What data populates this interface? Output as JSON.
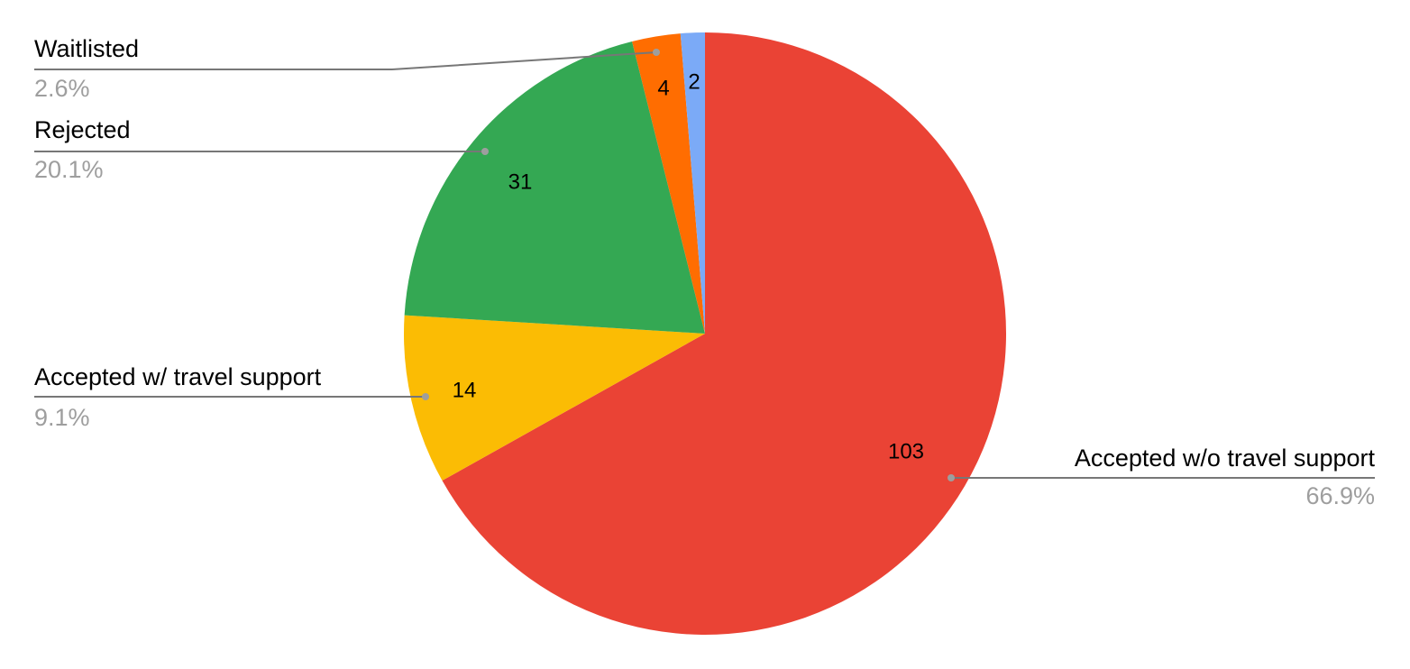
{
  "chart_data": {
    "type": "pie",
    "categories": [
      "Accepted w/o travel support",
      "Accepted w/ travel support",
      "Rejected",
      "Waitlisted",
      null
    ],
    "values": [
      103,
      14,
      31,
      4,
      2
    ],
    "percent_labels": [
      "66.9%",
      "9.1%",
      "20.1%",
      "2.6%",
      null
    ],
    "colors": [
      "#ea4335",
      "#fbbc04",
      "#34a853",
      "#ff6d01",
      "#7baaf7"
    ]
  }
}
